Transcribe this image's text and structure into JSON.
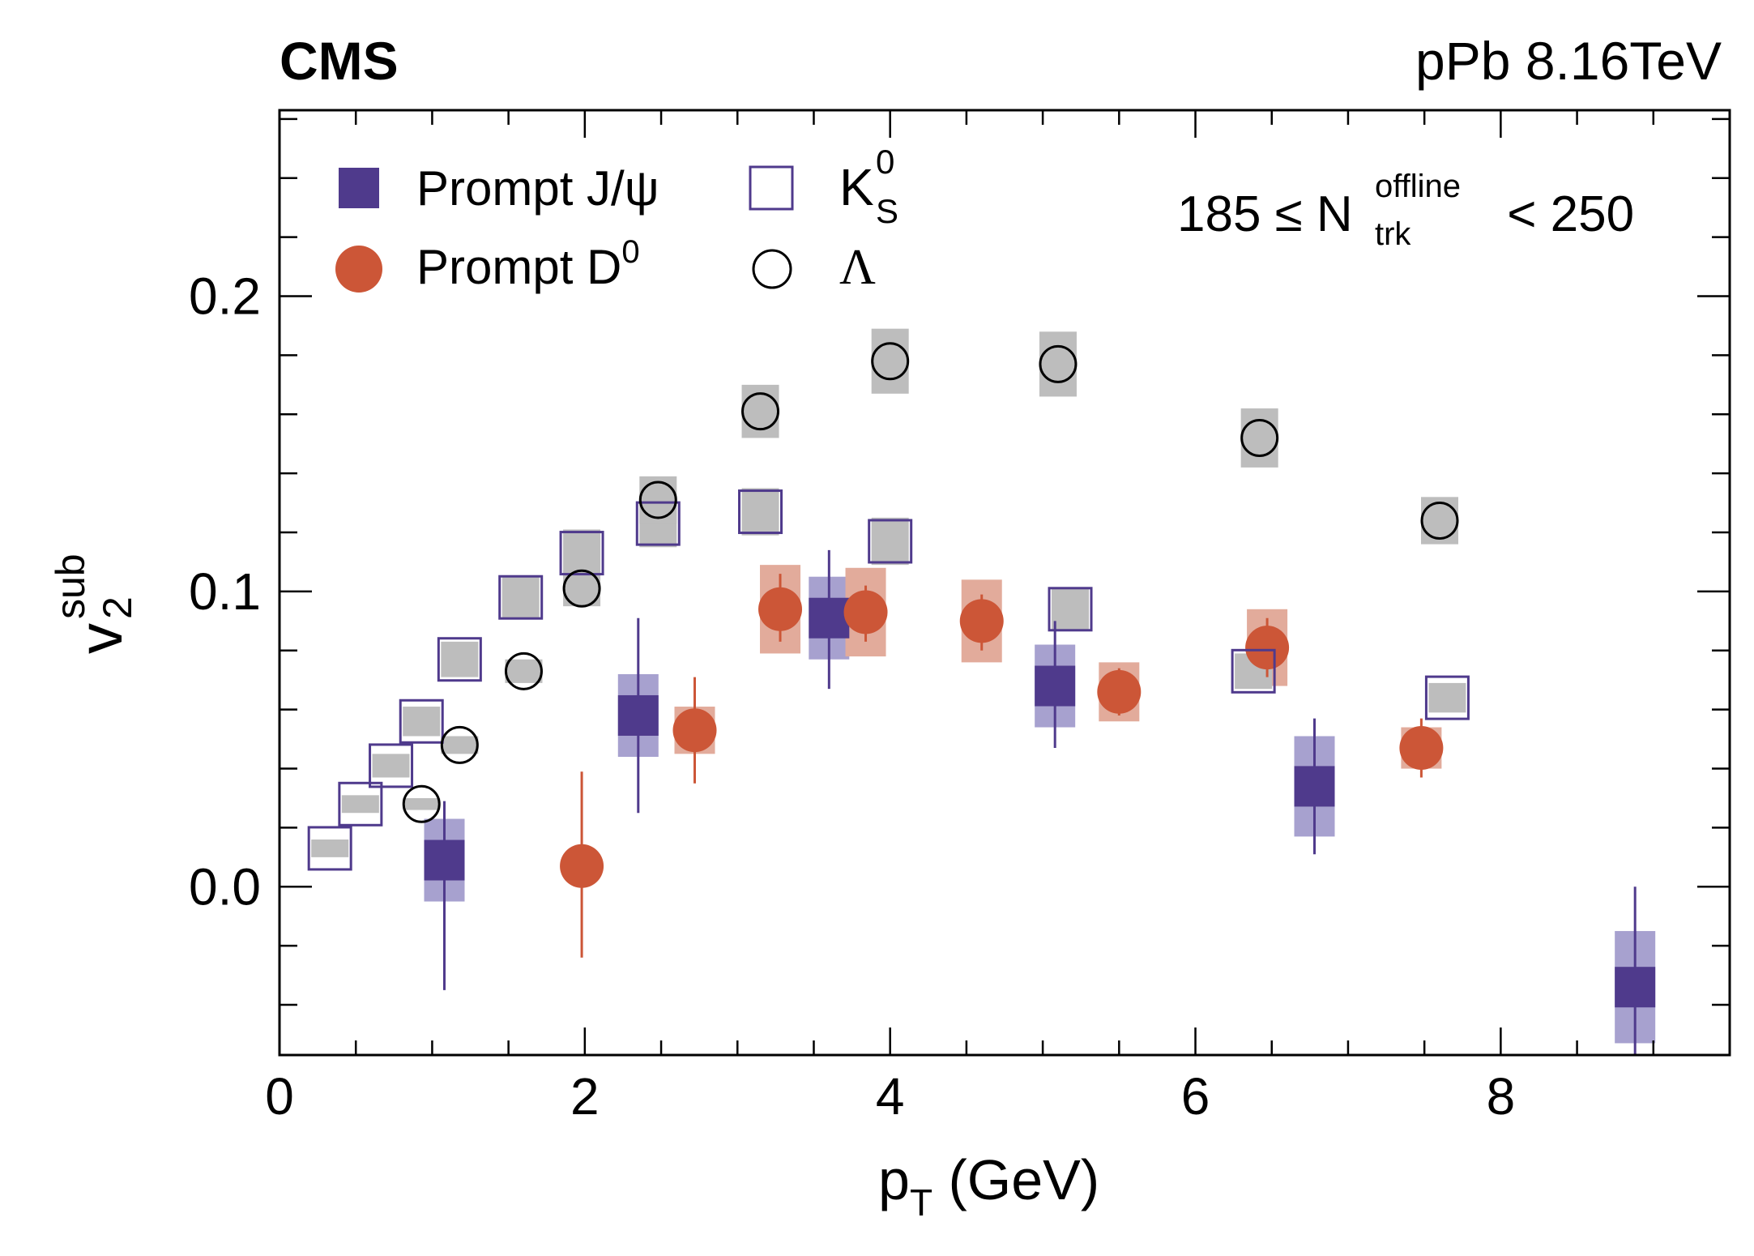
{
  "chart_data": {
    "type": "scatter",
    "experiment_label": "CMS",
    "collision_label": "pPb 8.16TeV",
    "selection": {
      "prefix": "185 ≤ N",
      "superscript": "offline",
      "subscript": "trk",
      "suffix": " < 250"
    },
    "xlabel": {
      "main": "p",
      "subscript": "T",
      "suffix": " (GeV)"
    },
    "ylabel": {
      "main": "v",
      "superscript": "sub",
      "subscript": "2"
    },
    "xlim": [
      0,
      9.5
    ],
    "ylim": [
      -0.057,
      0.263
    ],
    "x_ticks": [
      0,
      2,
      4,
      6,
      8
    ],
    "x_tick_labels": [
      "0",
      "2",
      "4",
      "6",
      "8"
    ],
    "y_ticks": [
      0.0,
      0.1,
      0.2
    ],
    "y_tick_labels": [
      "0.0",
      "0.1",
      "0.2"
    ],
    "x_minor_step": 0.5,
    "y_minor_step": 0.02,
    "legend": {
      "placement": "top-left",
      "entries": [
        {
          "series": "jpsi",
          "label": "Prompt J/ψ"
        },
        {
          "series": "d0",
          "label": "Prompt D",
          "superscript": "0"
        },
        {
          "series": "ks",
          "label": "K",
          "superscript": "0",
          "subscript": "S"
        },
        {
          "series": "lambda",
          "label": "Λ"
        }
      ]
    },
    "colors": {
      "jpsi": "#4f3a8c",
      "jpsi_syst": "#a7a1cf",
      "d0": "#cc5637",
      "d0_syst": "#e2ab9b",
      "grey_syst": "#bdbdbd",
      "lambda_marker": "#000000",
      "frame": "#000000"
    },
    "series": [
      {
        "name": "Prompt J/ψ",
        "key": "jpsi",
        "marker": "filled-square",
        "points": [
          {
            "x": 1.08,
            "y": 0.009,
            "stat": [
              -0.035,
              0.029
            ],
            "syst": 0.014
          },
          {
            "x": 2.35,
            "y": 0.058,
            "stat": [
              0.025,
              0.091
            ],
            "syst": 0.014
          },
          {
            "x": 3.6,
            "y": 0.091,
            "stat": [
              0.067,
              0.114
            ],
            "syst": 0.014
          },
          {
            "x": 5.08,
            "y": 0.068,
            "stat": [
              0.047,
              0.09
            ],
            "syst": 0.014
          },
          {
            "x": 6.78,
            "y": 0.034,
            "stat": [
              0.011,
              0.057
            ],
            "syst": 0.017
          },
          {
            "x": 8.88,
            "y": -0.034,
            "stat": [
              -0.068,
              0.0
            ],
            "syst": 0.019
          }
        ]
      },
      {
        "name": "Prompt D0",
        "key": "d0",
        "marker": "filled-circle",
        "points": [
          {
            "x": 1.98,
            "y": 0.007,
            "stat": [
              -0.024,
              0.039
            ],
            "syst": 0.0
          },
          {
            "x": 2.72,
            "y": 0.053,
            "stat": [
              0.035,
              0.071
            ],
            "syst": 0.008
          },
          {
            "x": 3.28,
            "y": 0.094,
            "stat": [
              0.083,
              0.106
            ],
            "syst": 0.015
          },
          {
            "x": 3.84,
            "y": 0.093,
            "stat": [
              0.083,
              0.102
            ],
            "syst": 0.015
          },
          {
            "x": 4.6,
            "y": 0.09,
            "stat": [
              0.08,
              0.099
            ],
            "syst": 0.014
          },
          {
            "x": 5.5,
            "y": 0.066,
            "stat": [
              0.058,
              0.074
            ],
            "syst": 0.01
          },
          {
            "x": 6.47,
            "y": 0.081,
            "stat": [
              0.071,
              0.091
            ],
            "syst": 0.013
          },
          {
            "x": 7.48,
            "y": 0.047,
            "stat": [
              0.037,
              0.057
            ],
            "syst": 0.007
          }
        ]
      },
      {
        "name": "KS0",
        "key": "ks",
        "marker": "open-square",
        "points": [
          {
            "x": 0.33,
            "y": 0.013,
            "syst": 0.003
          },
          {
            "x": 0.53,
            "y": 0.028,
            "syst": 0.003
          },
          {
            "x": 0.73,
            "y": 0.041,
            "syst": 0.004
          },
          {
            "x": 0.93,
            "y": 0.056,
            "syst": 0.005
          },
          {
            "x": 1.18,
            "y": 0.077,
            "syst": 0.006
          },
          {
            "x": 1.58,
            "y": 0.098,
            "syst": 0.007
          },
          {
            "x": 1.98,
            "y": 0.113,
            "syst": 0.008
          },
          {
            "x": 2.48,
            "y": 0.123,
            "syst": 0.008
          },
          {
            "x": 3.15,
            "y": 0.127,
            "syst": 0.008
          },
          {
            "x": 4.0,
            "y": 0.117,
            "syst": 0.008
          },
          {
            "x": 5.18,
            "y": 0.094,
            "syst": 0.007
          },
          {
            "x": 6.38,
            "y": 0.073,
            "syst": 0.006
          },
          {
            "x": 7.65,
            "y": 0.064,
            "syst": 0.005
          }
        ]
      },
      {
        "name": "Λ",
        "key": "lambda",
        "marker": "open-circle",
        "points": [
          {
            "x": 0.93,
            "y": 0.028,
            "syst": 0.002
          },
          {
            "x": 1.18,
            "y": 0.048,
            "syst": 0.003
          },
          {
            "x": 1.6,
            "y": 0.073,
            "syst": 0.004
          },
          {
            "x": 1.98,
            "y": 0.101,
            "syst": 0.006
          },
          {
            "x": 2.48,
            "y": 0.131,
            "syst": 0.008
          },
          {
            "x": 3.15,
            "y": 0.161,
            "syst": 0.009
          },
          {
            "x": 4.0,
            "y": 0.178,
            "syst": 0.011
          },
          {
            "x": 5.1,
            "y": 0.177,
            "syst": 0.011
          },
          {
            "x": 6.42,
            "y": 0.152,
            "syst": 0.01
          },
          {
            "x": 7.6,
            "y": 0.124,
            "syst": 0.008
          }
        ]
      }
    ]
  }
}
